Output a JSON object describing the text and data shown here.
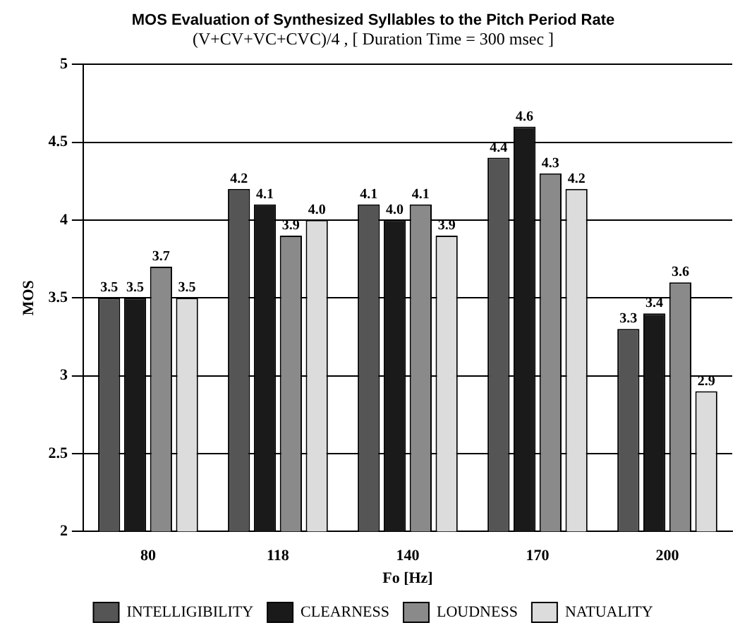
{
  "chart_data": {
    "type": "bar",
    "title": "MOS Evaluation of Synthesized Syllables to the Pitch Period Rate",
    "subtitle": "(V+CV+VC+CVC)/4 , [ Duration Time = 300 msec ]",
    "xlabel": "Fo [Hz]",
    "ylabel": "MOS",
    "categories": [
      "80",
      "118",
      "140",
      "170",
      "200"
    ],
    "series": [
      {
        "name": "INTELLIGIBILITY",
        "color": "#555555",
        "values": [
          3.5,
          4.2,
          4.1,
          4.4,
          3.3
        ],
        "value_labels": [
          "3.5",
          "4.2",
          "4.1",
          "4.4",
          "3.3"
        ]
      },
      {
        "name": "CLEARNESS",
        "color": "#1a1a1a",
        "values": [
          3.5,
          4.1,
          4.0,
          4.6,
          3.4
        ],
        "value_labels": [
          "3.5",
          "4.1",
          "4.0",
          "4.6",
          "3.4"
        ]
      },
      {
        "name": "LOUDNESS",
        "color": "#8a8a8a",
        "values": [
          3.7,
          3.9,
          4.1,
          4.3,
          3.6
        ],
        "value_labels": [
          "3.7",
          "3.9",
          "4.1",
          "4.3",
          "3.6"
        ]
      },
      {
        "name": "NATUALITY",
        "color": "#dcdcdc",
        "values": [
          3.5,
          4.0,
          3.9,
          4.2,
          2.9
        ],
        "value_labels": [
          "3.5",
          "4.0",
          "3.9",
          "4.2",
          "2.9"
        ]
      }
    ],
    "ylim": [
      2,
      5
    ],
    "yticks": [
      2,
      2.5,
      3,
      3.5,
      4,
      4.5,
      5
    ],
    "grid": "y",
    "legend": "bottom"
  }
}
